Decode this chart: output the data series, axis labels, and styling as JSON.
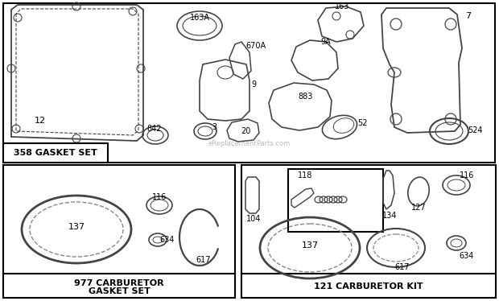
{
  "bg_color": "#ffffff",
  "border_color": "#000000",
  "line_color": "#444444",
  "gasket_set_label": "358 GASKET SET",
  "carb_gasket_label": "977 CARBURETOR\nGASKET SET",
  "carb_kit_label": "121 CARBURETOR KIT",
  "watermark": "eReplacementParts.com"
}
